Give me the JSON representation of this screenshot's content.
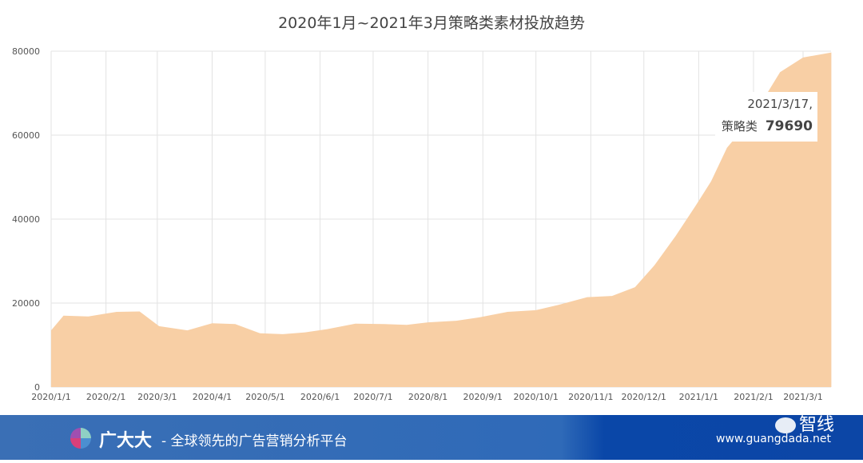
{
  "chart_data": {
    "type": "area",
    "title": "2020年1月~2021年3月策略类素材投放趋势",
    "xlabel": "",
    "ylabel": "",
    "ylim": [
      0,
      80000
    ],
    "yticks": [
      "0",
      "20000",
      "40000",
      "60000",
      "80000"
    ],
    "xticks": [
      "2020/1/1",
      "2020/2/1",
      "2020/3/1",
      "2020/4/1",
      "2020/5/1",
      "2020/6/1",
      "2020/7/1",
      "2020/8/1",
      "2020/9/1",
      "2020/10/1",
      "2020/11/1",
      "2020/12/1",
      "2021/1/1",
      "2021/2/1",
      "2021/3/1"
    ],
    "grid": true,
    "color": "#f8cfa5",
    "series": [
      {
        "name": "策略类",
        "x": [
          "2020/1/1",
          "2020/1/8",
          "2020/1/22",
          "2020/2/1",
          "2020/2/7",
          "2020/2/20",
          "2020/3/2",
          "2020/3/18",
          "2020/4/1",
          "2020/4/14",
          "2020/4/28",
          "2020/5/11",
          "2020/5/23",
          "2020/6/5",
          "2020/6/21",
          "2020/7/7",
          "2020/7/20",
          "2020/8/1",
          "2020/8/17",
          "2020/8/30",
          "2020/9/15",
          "2020/10/1",
          "2020/10/14",
          "2020/10/30",
          "2020/11/13",
          "2020/11/26",
          "2020/12/7",
          "2020/12/19",
          "2020/12/30",
          "2021/1/8",
          "2021/1/17",
          "2021/1/31",
          "2021/2/16",
          "2021/3/1",
          "2021/3/17"
        ],
        "values": [
          13500,
          17000,
          16800,
          17500,
          17900,
          18000,
          14500,
          13500,
          15200,
          15000,
          12800,
          12600,
          13000,
          13800,
          15100,
          15000,
          14800,
          15400,
          15800,
          16600,
          17900,
          18300,
          19600,
          21400,
          21700,
          23800,
          29000,
          36000,
          43000,
          49000,
          57000,
          64000,
          75000,
          78500,
          79690
        ]
      }
    ],
    "tooltip": {
      "date": "2021/3/17,",
      "series": "策略类",
      "value": "79690"
    }
  },
  "footer": {
    "brand": "广大大",
    "slogan": "- 全球领先的广告营销分析平台",
    "website": "www.guangdada.net",
    "watermark": "智线"
  }
}
